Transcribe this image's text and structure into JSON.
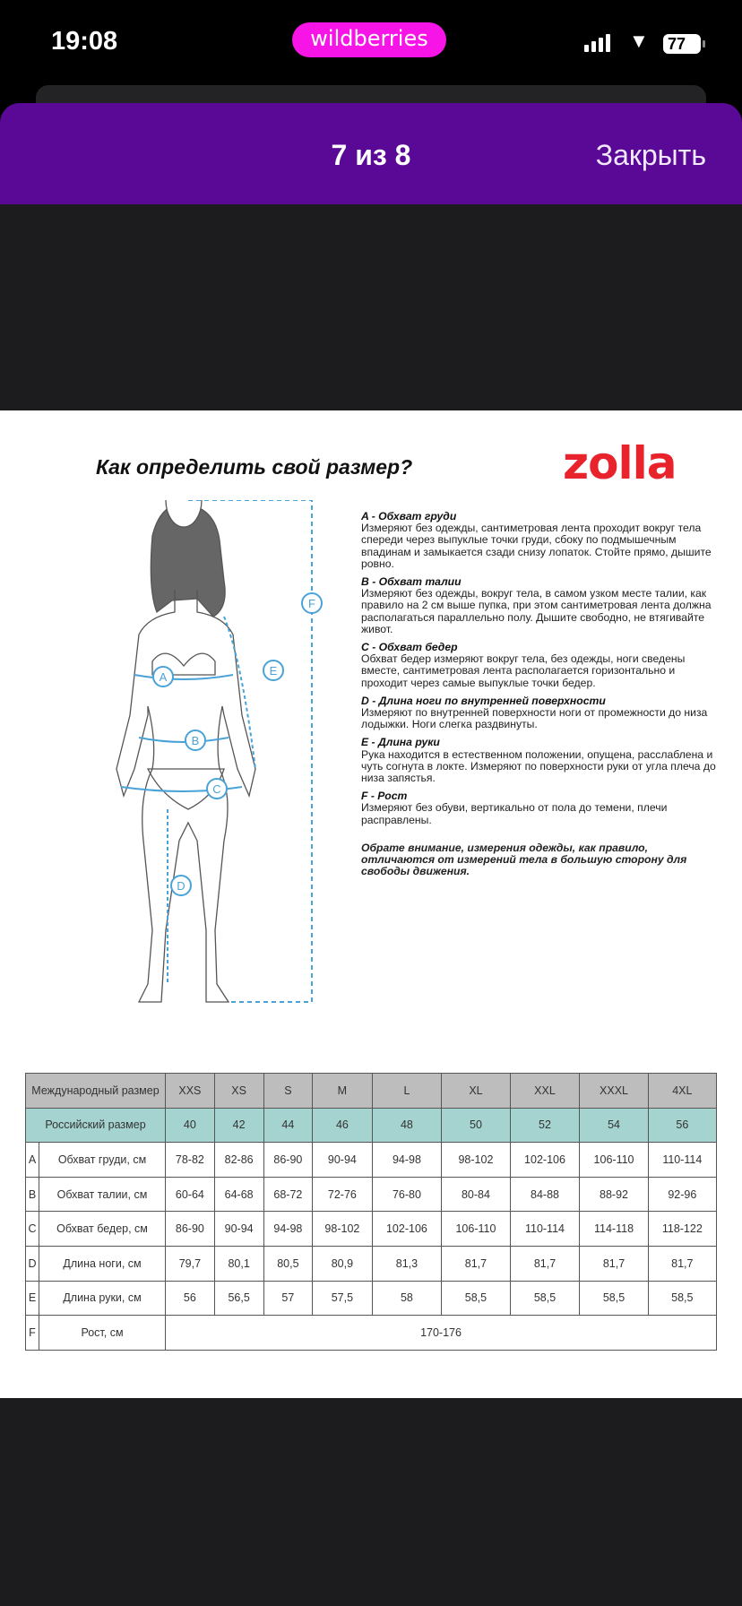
{
  "status_bar": {
    "time": "19:08",
    "app_pill": "wildberries",
    "battery": "77"
  },
  "header": {
    "counter": "7 из 8",
    "close_label": "Закрыть",
    "color": "#5a0896"
  },
  "image": {
    "title": "Как определить свой размер?",
    "logo": "zolla",
    "figure_labels": [
      "A",
      "B",
      "C",
      "D",
      "E",
      "F"
    ],
    "descriptions": [
      {
        "heading": "A - Обхват груди",
        "text": "Измеряют без одежды, сантиметровая лента проходит вокруг тела спереди через выпуклые точки груди, сбоку по подмышечным впадинам и замыкается сзади снизу лопаток. Стойте прямо, дышите ровно."
      },
      {
        "heading": "B - Обхват талии",
        "text": "Измеряют без одежды, вокруг тела, в самом узком месте талии, как правило на 2 см выше пупка, при этом сантиметровая лента должна располагаться параллельно полу. Дышите свободно, не втягивайте живот."
      },
      {
        "heading": "C - Обхват бедер",
        "text": "Обхват бедер измеряют вокруг тела, без одежды, ноги сведены вместе, сантиметровая лента располагается горизонтально и проходит через самые выпуклые точки бедер."
      },
      {
        "heading": "D - Длина ноги по внутренней поверхности",
        "text": "Измеряют по внутренней поверхности ноги от промежности до низа лодыжки.  Ноги слегка раздвинуты."
      },
      {
        "heading": "E - Длина руки",
        "text": "Рука находится в естественном положении, опущена, расслаблена и чуть согнута в локте. Измеряют по поверхности руки от угла плеча до низа запястья."
      },
      {
        "heading": "F - Рост",
        "text": "Измеряют без обуви, вертикально от пола до темени, плечи расправлены."
      }
    ],
    "note": "Обрате внимание, измерения одежды, как правило, отличаются от измерений тела в большую сторону для свободы движения.",
    "table": {
      "intl_label": "Международный размер",
      "intl": [
        "XXS",
        "XS",
        "S",
        "M",
        "L",
        "XL",
        "XXL",
        "XXXL",
        "4XL"
      ],
      "ru_label": "Российский размер",
      "ru": [
        "40",
        "42",
        "44",
        "46",
        "48",
        "50",
        "52",
        "54",
        "56"
      ],
      "rows": [
        {
          "letter": "A",
          "label": "Обхват груди, см",
          "values": [
            "78-82",
            "82-86",
            "86-90",
            "90-94",
            "94-98",
            "98-102",
            "102-106",
            "106-110",
            "110-114"
          ]
        },
        {
          "letter": "B",
          "label": "Обхват талии, см",
          "values": [
            "60-64",
            "64-68",
            "68-72",
            "72-76",
            "76-80",
            "80-84",
            "84-88",
            "88-92",
            "92-96"
          ]
        },
        {
          "letter": "C",
          "label": "Обхват бедер, см",
          "values": [
            "86-90",
            "90-94",
            "94-98",
            "98-102",
            "102-106",
            "106-110",
            "110-114",
            "114-118",
            "118-122"
          ]
        },
        {
          "letter": "D",
          "label": "Длина ноги, см",
          "values": [
            "79,7",
            "80,1",
            "80,5",
            "80,9",
            "81,3",
            "81,7",
            "81,7",
            "81,7",
            "81,7"
          ]
        },
        {
          "letter": "E",
          "label": "Длина руки, см",
          "values": [
            "56",
            "56,5",
            "57",
            "57,5",
            "58",
            "58,5",
            "58,5",
            "58,5",
            "58,5"
          ]
        }
      ],
      "height_row": {
        "letter": "F",
        "label": "Рост, см",
        "value": "170-176"
      }
    }
  }
}
